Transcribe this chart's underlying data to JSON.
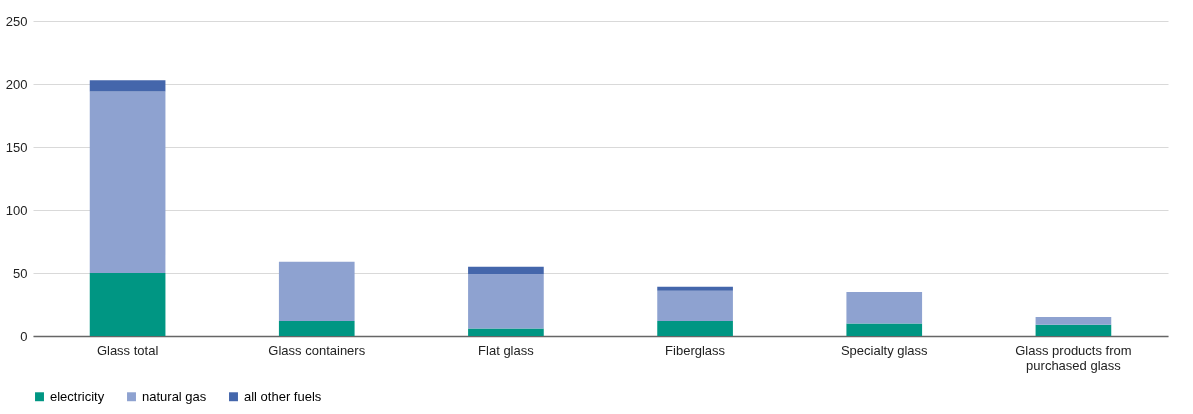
{
  "chart_data": {
    "type": "bar",
    "stacked": true,
    "categories": [
      "Glass total",
      "Glass containers",
      "Flat glass",
      "Fiberglass",
      "Specialty glass",
      "Glass products from purchased glass"
    ],
    "series": [
      {
        "name": "electricity",
        "color": "#009683",
        "values": [
          50,
          12,
          6,
          12,
          10,
          9
        ]
      },
      {
        "name": "natural gas",
        "color": "#8ea2d0",
        "values": [
          144,
          47,
          43,
          24,
          25,
          6
        ]
      },
      {
        "name": "all other fuels",
        "color": "#4466ab",
        "values": [
          9,
          0,
          6,
          3,
          0,
          0
        ]
      }
    ],
    "ylim": [
      0,
      250
    ],
    "yticks": [
      0,
      50,
      100,
      150,
      200,
      250
    ],
    "grid": "y",
    "legend": "bottom"
  }
}
